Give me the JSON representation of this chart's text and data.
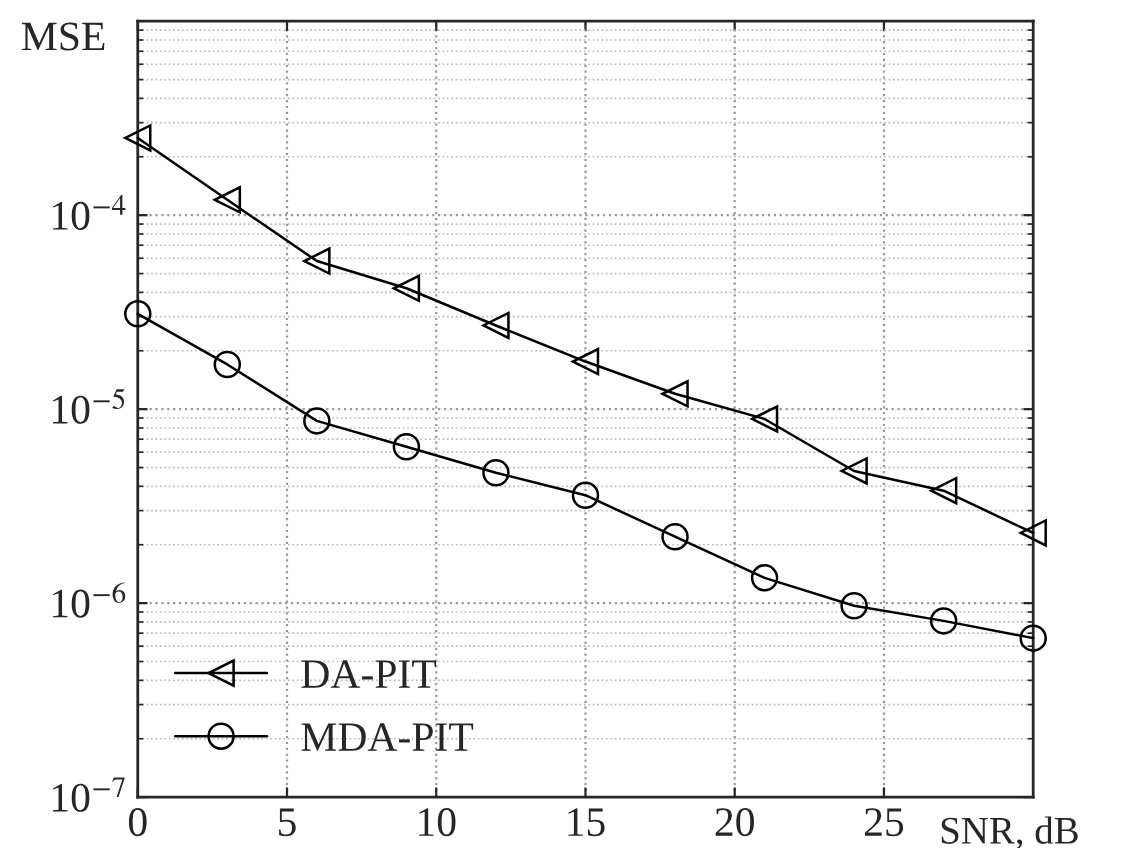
{
  "chart_data": {
    "type": "line",
    "xlabel": "SNR, dB",
    "ylabel": "MSE",
    "x": [
      0,
      3,
      6,
      9,
      12,
      15,
      18,
      21,
      24,
      27,
      30
    ],
    "series": [
      {
        "name": "DA-PIT",
        "color": "#000000",
        "marker": "triangle",
        "values": [
          0.00025,
          0.00012,
          5.8e-05,
          4.2e-05,
          2.7e-05,
          1.76e-05,
          1.2e-05,
          8.9e-06,
          4.8e-06,
          3.8e-06,
          2.3e-06
        ]
      },
      {
        "name": "MDA-PIT",
        "color": "#000000",
        "marker": "circle",
        "values": [
          3.1e-05,
          1.7e-05,
          8.7e-06,
          6.4e-06,
          4.7e-06,
          3.6e-06,
          2.2e-06,
          1.35e-06,
          9.7e-07,
          8.1e-07,
          6.6e-07
        ]
      }
    ],
    "log": "y",
    "xlim": [
      0,
      30
    ],
    "ylim": [
      1e-07,
      0.001
    ],
    "xticks": [
      0,
      5,
      10,
      15,
      20,
      25
    ],
    "yticks": [
      {
        "value": 1e-07,
        "label": "10$^{−7}$"
      },
      {
        "value": 1e-06,
        "label": "10$^{−6}$"
      },
      {
        "value": 1e-05,
        "label": "10$^{−5}$"
      },
      {
        "value": 0.0001,
        "label": "10$^{−4}$"
      }
    ],
    "grid": true,
    "legend": "bottom left",
    "line_style": "solid"
  }
}
